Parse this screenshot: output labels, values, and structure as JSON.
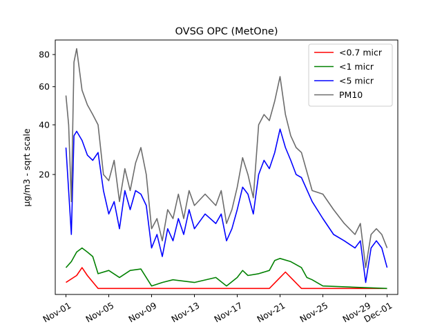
{
  "chart_data": {
    "type": "line",
    "title": "OVSG OPC (MetOne)",
    "xlabel": "",
    "ylabel": "µg/m3 - sqrt scale",
    "y_scale": "sqrt",
    "ylim": [
      0,
      90
    ],
    "yticks": [
      20,
      40,
      60,
      80
    ],
    "x_range": [
      "Oct-31",
      "Dec-02"
    ],
    "xticks": [
      "Nov-01",
      "Nov-05",
      "Nov-09",
      "Nov-13",
      "Nov-17",
      "Nov-21",
      "Nov-25",
      "Nov-29",
      "Dec-01"
    ],
    "grid": false,
    "legend_position": "top-right",
    "series": [
      {
        "name": "<0.7 micr",
        "color": "#ff0000",
        "x": [
          "Nov-01",
          "Nov-02",
          "Nov-02 12:00",
          "Nov-03",
          "Nov-04",
          "Nov-20",
          "Nov-21",
          "Nov-21 12:00",
          "Nov-22",
          "Nov-23",
          "Dec-01"
        ],
        "values": [
          0.2,
          0.5,
          1.0,
          0.5,
          0.05,
          0.05,
          0.4,
          0.7,
          0.4,
          0.05,
          0.05
        ]
      },
      {
        "name": "<1 micr",
        "color": "#008000",
        "x": [
          "Nov-01",
          "Nov-01 12:00",
          "Nov-02",
          "Nov-02 12:00",
          "Nov-03",
          "Nov-03 12:00",
          "Nov-04",
          "Nov-05",
          "Nov-06",
          "Nov-07",
          "Nov-08",
          "Nov-08 12:00",
          "Nov-09",
          "Nov-10",
          "Nov-11",
          "Nov-13",
          "Nov-15",
          "Nov-16",
          "Nov-17",
          "Nov-17 12:00",
          "Nov-18",
          "Nov-19",
          "Nov-20",
          "Nov-20 12:00",
          "Nov-21",
          "Nov-22",
          "Nov-23",
          "Nov-23 12:00",
          "Nov-24",
          "Nov-25",
          "Dec-01"
        ],
        "values": [
          1.0,
          1.5,
          2.5,
          3.0,
          2.5,
          2.0,
          0.6,
          0.8,
          0.4,
          0.8,
          0.9,
          0.4,
          0.1,
          0.2,
          0.3,
          0.2,
          0.4,
          0.1,
          0.4,
          0.8,
          0.5,
          0.6,
          0.8,
          1.6,
          1.8,
          1.5,
          1.0,
          0.4,
          0.3,
          0.1,
          0.05
        ]
      },
      {
        "name": "<5 micr",
        "color": "#0000ff",
        "x": [
          "Nov-01",
          "Nov-01 06:00",
          "Nov-01 12:00",
          "Nov-01 18:00",
          "Nov-02",
          "Nov-02 12:00",
          "Nov-03",
          "Nov-03 12:00",
          "Nov-04",
          "Nov-04 12:00",
          "Nov-05",
          "Nov-05 12:00",
          "Nov-06",
          "Nov-06 12:00",
          "Nov-07",
          "Nov-07 12:00",
          "Nov-08",
          "Nov-08 12:00",
          "Nov-09",
          "Nov-09 12:00",
          "Nov-10",
          "Nov-10 12:00",
          "Nov-11",
          "Nov-11 12:00",
          "Nov-12",
          "Nov-12 12:00",
          "Nov-13",
          "Nov-14",
          "Nov-15",
          "Nov-15 12:00",
          "Nov-16",
          "Nov-16 12:00",
          "Nov-17",
          "Nov-17 12:00",
          "Nov-18",
          "Nov-18 12:00",
          "Nov-19",
          "Nov-19 12:00",
          "Nov-20",
          "Nov-20 12:00",
          "Nov-21",
          "Nov-21 12:00",
          "Nov-22",
          "Nov-22 12:00",
          "Nov-23",
          "Nov-24",
          "Nov-25",
          "Nov-26",
          "Nov-27",
          "Nov-28",
          "Nov-28 12:00",
          "Nov-29",
          "Nov-29 12:00",
          "Nov-30",
          "Nov-30 12:00",
          "Dec-01"
        ],
        "values": [
          30,
          15,
          5,
          35,
          37,
          33,
          27,
          25,
          28,
          15,
          9,
          12,
          6,
          15,
          10,
          15,
          14,
          11,
          3,
          5,
          2,
          6,
          4,
          8,
          5,
          10,
          6,
          9,
          7,
          9,
          4,
          6,
          10,
          16,
          14,
          9,
          20,
          25,
          22,
          28,
          38,
          30,
          25,
          20,
          19,
          12,
          8,
          5,
          4,
          3,
          4,
          0.2,
          3,
          4,
          3,
          1
        ]
      },
      {
        "name": "PM10",
        "color": "#6b6b6b",
        "x": [
          "Nov-01",
          "Nov-01 06:00",
          "Nov-01 12:00",
          "Nov-01 18:00",
          "Nov-02",
          "Nov-02 12:00",
          "Nov-03",
          "Nov-03 12:00",
          "Nov-04",
          "Nov-04 12:00",
          "Nov-05",
          "Nov-05 12:00",
          "Nov-06",
          "Nov-06 12:00",
          "Nov-07",
          "Nov-07 12:00",
          "Nov-08",
          "Nov-08 12:00",
          "Nov-09",
          "Nov-09 12:00",
          "Nov-10",
          "Nov-10 12:00",
          "Nov-11",
          "Nov-11 12:00",
          "Nov-12",
          "Nov-12 12:00",
          "Nov-13",
          "Nov-14",
          "Nov-15",
          "Nov-15 12:00",
          "Nov-16",
          "Nov-16 12:00",
          "Nov-17",
          "Nov-17 12:00",
          "Nov-18",
          "Nov-18 12:00",
          "Nov-19",
          "Nov-19 12:00",
          "Nov-20",
          "Nov-20 12:00",
          "Nov-21",
          "Nov-21 12:00",
          "Nov-22",
          "Nov-22 12:00",
          "Nov-23",
          "Nov-24",
          "Nov-25",
          "Nov-26",
          "Nov-27",
          "Nov-28",
          "Nov-28 12:00",
          "Nov-29",
          "Nov-29 12:00",
          "Nov-30",
          "Nov-30 12:00",
          "Dec-01"
        ],
        "values": [
          55,
          40,
          12,
          75,
          84,
          58,
          50,
          45,
          40,
          20,
          18,
          25,
          12,
          22,
          15,
          24,
          30,
          20,
          6,
          8,
          4,
          10,
          8,
          14,
          8,
          15,
          11,
          14,
          11,
          15,
          7,
          10,
          16,
          26,
          20,
          13,
          40,
          45,
          42,
          52,
          66,
          45,
          35,
          30,
          28,
          15,
          14,
          10,
          7,
          5,
          7,
          1,
          5,
          6,
          5,
          3
        ]
      }
    ]
  }
}
